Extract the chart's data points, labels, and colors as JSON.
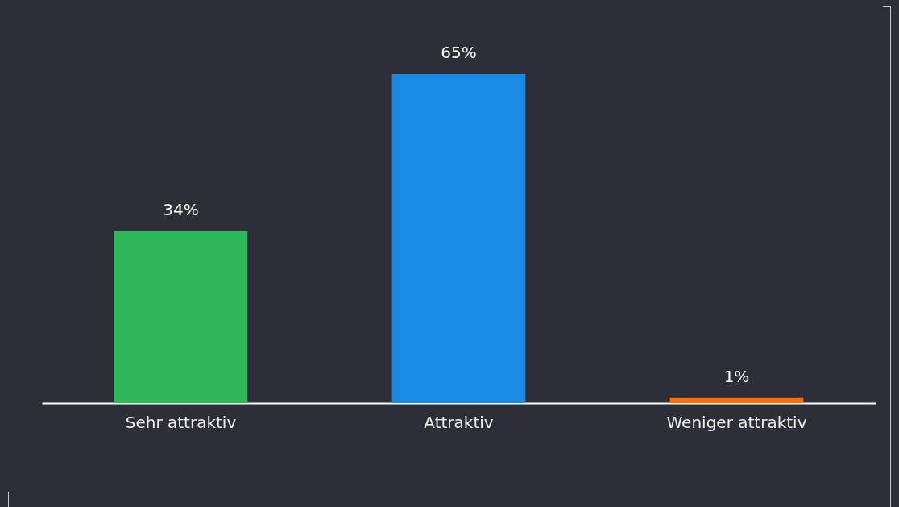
{
  "chart_data": {
    "type": "bar",
    "categories": [
      "Sehr attraktiv",
      "Attraktiv",
      "Weniger attraktiv"
    ],
    "values": [
      34,
      65,
      1
    ],
    "colors": [
      "#2eb85a",
      "#1a8be4",
      "#ff6d0a"
    ],
    "value_labels": [
      "34%",
      "65%",
      "1%"
    ]
  }
}
